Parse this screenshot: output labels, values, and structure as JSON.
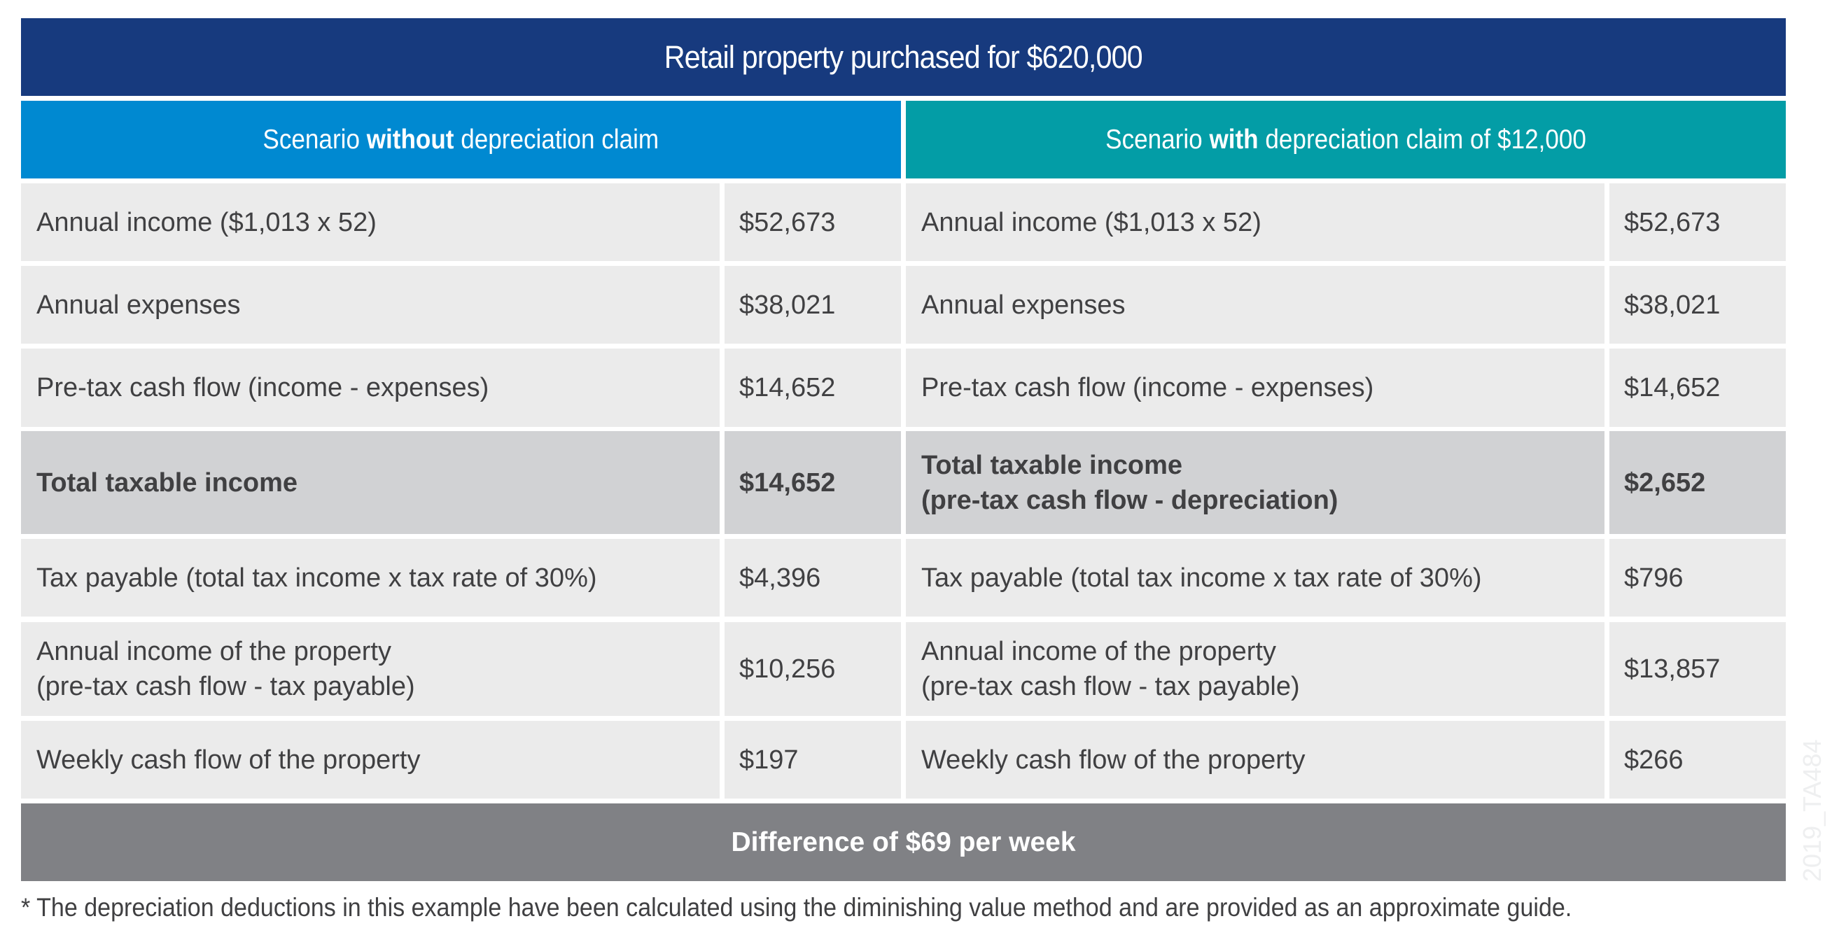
{
  "title": "Retail property purchased for $620,000",
  "colors": {
    "title_band": "#173a7e",
    "header_without": "#0089d1",
    "header_with": "#039da6",
    "cell": "#ebebeb",
    "total_cell": "#d1d2d4",
    "difference_band": "#808185",
    "text": "#404042"
  },
  "headers": {
    "without": {
      "prefix": "Scenario ",
      "bold": "without",
      "suffix": " depreciation claim"
    },
    "with": {
      "prefix": "Scenario ",
      "bold": "with",
      "suffix": " depreciation claim of $12,000"
    }
  },
  "rows": [
    {
      "left_label": [
        "Annual income ($1,013 x 52)"
      ],
      "left_value": "$52,673",
      "right_label": [
        "Annual income ($1,013 x 52)"
      ],
      "right_value": "$52,673",
      "total": false
    },
    {
      "left_label": [
        "Annual expenses"
      ],
      "left_value": "$38,021",
      "right_label": [
        "Annual expenses"
      ],
      "right_value": "$38,021",
      "total": false
    },
    {
      "left_label": [
        "Pre-tax cash flow (income - expenses)"
      ],
      "left_value": "$14,652",
      "right_label": [
        "Pre-tax cash flow (income - expenses)"
      ],
      "right_value": "$14,652",
      "total": false
    },
    {
      "left_label": [
        "Total taxable income"
      ],
      "left_value": "$14,652",
      "right_label": [
        "Total taxable income",
        "(pre-tax cash flow - depreciation)"
      ],
      "right_value": "$2,652",
      "total": true
    },
    {
      "left_label": [
        "Tax payable (total tax income x tax rate of 30%)"
      ],
      "left_value": "$4,396",
      "right_label": [
        "Tax payable (total tax income x tax rate of 30%)"
      ],
      "right_value": "$796",
      "total": false
    },
    {
      "left_label": [
        "Annual income of the property",
        "(pre-tax cash flow - tax payable)"
      ],
      "left_value": "$10,256",
      "right_label": [
        "Annual income of the property",
        "(pre-tax cash flow - tax payable)"
      ],
      "right_value": "$13,857",
      "total": false
    },
    {
      "left_label": [
        "Weekly cash flow of the property"
      ],
      "left_value": "$197",
      "right_label": [
        "Weekly cash flow of the property"
      ],
      "right_value": "$266",
      "total": false
    }
  ],
  "difference": "Difference of $69 per week",
  "footnote": "* The depreciation deductions in this example have been calculated using the diminishing value method and are provided as an approximate guide.",
  "watermark": "2019_TA484"
}
